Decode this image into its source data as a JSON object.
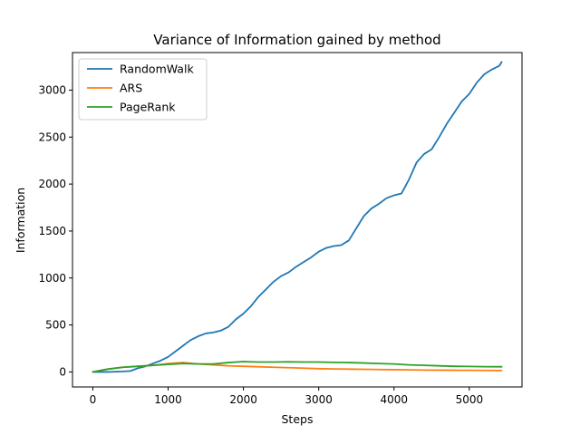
{
  "chart_data": {
    "type": "line",
    "title": "Variance of Information gained by method",
    "xlabel": "Steps",
    "ylabel": "Information",
    "xlim": [
      -270,
      5700
    ],
    "ylim": [
      -160,
      3400
    ],
    "xticks": [
      0,
      1000,
      2000,
      3000,
      4000,
      5000
    ],
    "yticks": [
      0,
      500,
      1000,
      1500,
      2000,
      2500,
      3000
    ],
    "grid": false,
    "legend_position": "top-left",
    "series": [
      {
        "name": "RandomWalk",
        "color": "#1f77b4",
        "x": [
          0,
          200,
          400,
          500,
          600,
          700,
          800,
          900,
          1000,
          1100,
          1200,
          1300,
          1400,
          1500,
          1600,
          1700,
          1800,
          1900,
          2000,
          2100,
          2200,
          2300,
          2400,
          2500,
          2600,
          2700,
          2800,
          2900,
          3000,
          3100,
          3200,
          3300,
          3400,
          3500,
          3600,
          3700,
          3800,
          3900,
          4000,
          4100,
          4200,
          4300,
          4400,
          4500,
          4600,
          4700,
          4800,
          4900,
          5000,
          5100,
          5200,
          5300,
          5400,
          5430
        ],
        "y": [
          0,
          0,
          5,
          10,
          40,
          60,
          90,
          120,
          160,
          220,
          280,
          340,
          380,
          410,
          420,
          440,
          480,
          560,
          620,
          700,
          800,
          880,
          960,
          1020,
          1060,
          1120,
          1170,
          1220,
          1280,
          1320,
          1340,
          1350,
          1400,
          1530,
          1660,
          1740,
          1790,
          1850,
          1880,
          1900,
          2050,
          2230,
          2320,
          2370,
          2500,
          2640,
          2760,
          2880,
          2960,
          3080,
          3170,
          3220,
          3260,
          3300
        ]
      },
      {
        "name": "ARS",
        "color": "#ff7f0e",
        "x": [
          0,
          200,
          400,
          600,
          800,
          1000,
          1200,
          1400,
          1600,
          1800,
          2000,
          2200,
          2400,
          2600,
          2800,
          3000,
          3200,
          3400,
          3600,
          3800,
          4000,
          4200,
          4400,
          4600,
          4800,
          5000,
          5200,
          5430
        ],
        "y": [
          0,
          30,
          50,
          60,
          70,
          90,
          100,
          85,
          75,
          65,
          60,
          55,
          50,
          45,
          40,
          35,
          32,
          30,
          28,
          26,
          24,
          22,
          20,
          19,
          18,
          17,
          16,
          15
        ]
      },
      {
        "name": "PageRank",
        "color": "#2ca02c",
        "x": [
          0,
          200,
          400,
          600,
          800,
          1000,
          1200,
          1400,
          1600,
          1800,
          2000,
          2200,
          2400,
          2600,
          2800,
          3000,
          3200,
          3400,
          3600,
          3800,
          4000,
          4200,
          4400,
          4600,
          4800,
          5000,
          5200,
          5430
        ],
        "y": [
          0,
          30,
          50,
          60,
          70,
          80,
          90,
          85,
          85,
          100,
          110,
          105,
          105,
          108,
          105,
          105,
          102,
          100,
          95,
          90,
          85,
          75,
          70,
          65,
          60,
          58,
          56,
          55
        ]
      }
    ]
  }
}
